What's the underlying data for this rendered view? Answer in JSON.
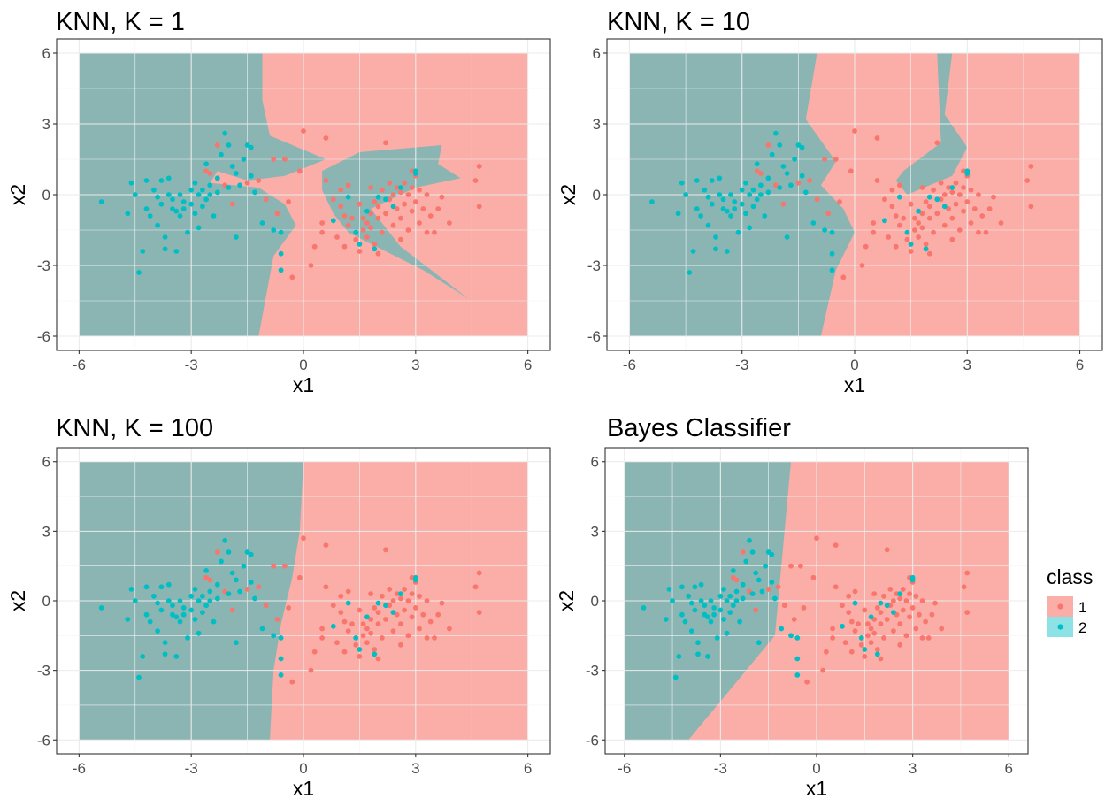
{
  "colors": {
    "class_1": "#f8766d",
    "class_2": "#00bfc4"
  },
  "legend": {
    "title": "class",
    "items": [
      {
        "label": "1",
        "color": "#f8766d"
      },
      {
        "label": "2",
        "color": "#00bfc4"
      }
    ],
    "position": "right"
  },
  "chart_data": [
    {
      "type": "scatter",
      "title": "KNN, K = 1",
      "xlabel": "x1",
      "ylabel": "x2",
      "xlim": [
        -6,
        6
      ],
      "ylim": [
        -6,
        6
      ],
      "xticks": [
        "-6",
        "-3",
        "0",
        "3",
        "6"
      ],
      "yticks": [
        "-6",
        "-3",
        "0",
        "3",
        "6"
      ],
      "grid": true,
      "decision_region_class_2": [
        [
          -6,
          -6
        ],
        [
          -6,
          6
        ],
        [
          -1.1,
          6
        ],
        [
          -1.1,
          4
        ],
        [
          -0.9,
          2.5
        ],
        [
          0.6,
          1.5
        ],
        [
          -0.5,
          0.8
        ],
        [
          -1.5,
          0.6
        ],
        [
          -2.3,
          1.0
        ],
        [
          -2.5,
          0.5
        ],
        [
          -1.2,
          0.3
        ],
        [
          -0.5,
          -0.4
        ],
        [
          -0.2,
          -1.3
        ],
        [
          -0.8,
          -2.6
        ],
        [
          -1.2,
          -6
        ]
      ],
      "decision_region_class_2_islands": [
        [
          [
            0.5,
            1.0
          ],
          [
            1.5,
            1.8
          ],
          [
            3.7,
            2.1
          ],
          [
            3.6,
            1.3
          ],
          [
            4.2,
            0.7
          ],
          [
            3.0,
            0.3
          ],
          [
            1.8,
            -0.6
          ],
          [
            2.6,
            -2.2
          ],
          [
            4.4,
            -4.4
          ],
          [
            3.2,
            -3.2
          ],
          [
            1.2,
            -1.6
          ],
          [
            0.8,
            -0.8
          ],
          [
            0.5,
            0.2
          ]
        ]
      ]
    },
    {
      "type": "scatter",
      "title": "KNN, K = 10",
      "xlabel": "x1",
      "ylabel": "x2",
      "xlim": [
        -6,
        6
      ],
      "ylim": [
        -6,
        6
      ],
      "xticks": [
        "-6",
        "-3",
        "0",
        "3",
        "6"
      ],
      "yticks": [
        "-6",
        "-3",
        "0",
        "3",
        "6"
      ],
      "grid": true,
      "decision_region_class_2": [
        [
          -6,
          -6
        ],
        [
          -6,
          6
        ],
        [
          -1.0,
          6
        ],
        [
          -1.3,
          3.2
        ],
        [
          -0.5,
          1.4
        ],
        [
          -0.9,
          0.4
        ],
        [
          -0.3,
          -0.6
        ],
        [
          0.0,
          -1.6
        ],
        [
          -0.5,
          -3.2
        ],
        [
          -0.9,
          -6
        ]
      ],
      "decision_region_class_2_islands": [
        [
          [
            1.3,
            1.0
          ],
          [
            2.3,
            2.2
          ],
          [
            2.2,
            6
          ],
          [
            2.6,
            6
          ],
          [
            2.4,
            3.4
          ],
          [
            3.0,
            2.0
          ],
          [
            2.6,
            0.8
          ],
          [
            1.4,
            0.0
          ],
          [
            1.1,
            0.6
          ]
        ]
      ]
    },
    {
      "type": "scatter",
      "title": "KNN, K = 100",
      "xlabel": "x1",
      "ylabel": "x2",
      "xlim": [
        -6,
        6
      ],
      "ylim": [
        -6,
        6
      ],
      "xticks": [
        "-6",
        "-3",
        "0",
        "3",
        "6"
      ],
      "yticks": [
        "-6",
        "-3",
        "0",
        "3",
        "6"
      ],
      "grid": true,
      "decision_region_class_2": [
        [
          -6,
          -6
        ],
        [
          -6,
          6
        ],
        [
          0.0,
          6
        ],
        [
          -0.1,
          3.0
        ],
        [
          -0.3,
          1.0
        ],
        [
          -0.6,
          -1.0
        ],
        [
          -0.8,
          -3.0
        ],
        [
          -0.9,
          -6
        ]
      ]
    },
    {
      "type": "scatter",
      "title": "Bayes Classifier",
      "xlabel": "x1",
      "ylabel": "x2",
      "xlim": [
        -6,
        6
      ],
      "ylim": [
        -6,
        6
      ],
      "xticks": [
        "-6",
        "-3",
        "0",
        "3",
        "6"
      ],
      "yticks": [
        "-6",
        "-3",
        "0",
        "3",
        "6"
      ],
      "grid": true,
      "decision_region_class_2": [
        [
          -6,
          -6
        ],
        [
          -6,
          6
        ],
        [
          -0.8,
          6
        ],
        [
          -1.3,
          -1.5
        ],
        [
          -4.0,
          -6
        ]
      ]
    }
  ],
  "points": {
    "class_1": [
      [
        -2.6,
        1.0
      ],
      [
        -2.5,
        0.9
      ],
      [
        -2.3,
        2.1
      ],
      [
        -2.1,
        0.4
      ],
      [
        -1.9,
        -0.4
      ],
      [
        -1.5,
        0.5
      ],
      [
        -1.2,
        0.6
      ],
      [
        -0.8,
        1.5
      ],
      [
        -0.5,
        1.5
      ],
      [
        -0.1,
        1.0
      ],
      [
        0.0,
        2.7
      ],
      [
        0.6,
        2.4
      ],
      [
        0.6,
        0.6
      ],
      [
        0.8,
        -0.2
      ],
      [
        0.5,
        -1.2
      ],
      [
        0.5,
        -1.6
      ],
      [
        0.3,
        -2.2
      ],
      [
        0.2,
        -3.0
      ],
      [
        -0.3,
        -3.5
      ],
      [
        1.0,
        -0.5
      ],
      [
        1.1,
        -0.9
      ],
      [
        1.2,
        -1.3
      ],
      [
        1.3,
        -1.0
      ],
      [
        1.4,
        -1.9
      ],
      [
        1.5,
        -0.4
      ],
      [
        1.6,
        -1.0
      ],
      [
        1.6,
        -1.5
      ],
      [
        1.7,
        -1.2
      ],
      [
        1.7,
        -1.8
      ],
      [
        1.8,
        -0.8
      ],
      [
        1.8,
        -1.4
      ],
      [
        1.9,
        -2.1
      ],
      [
        1.9,
        -0.3
      ],
      [
        2.0,
        -0.5
      ],
      [
        2.0,
        -1.0
      ],
      [
        2.1,
        0.2
      ],
      [
        2.1,
        -1.6
      ],
      [
        2.2,
        2.2
      ],
      [
        2.2,
        -0.8
      ],
      [
        2.3,
        0.5
      ],
      [
        2.3,
        -0.2
      ],
      [
        2.4,
        -1.3
      ],
      [
        2.4,
        0.0
      ],
      [
        2.5,
        -0.6
      ],
      [
        2.5,
        0.3
      ],
      [
        2.6,
        -1.0
      ],
      [
        2.6,
        0.1
      ],
      [
        2.7,
        -0.4
      ],
      [
        2.7,
        0.5
      ],
      [
        2.8,
        -1.5
      ],
      [
        2.8,
        0.0
      ],
      [
        2.9,
        -0.7
      ],
      [
        2.9,
        0.3
      ],
      [
        3.0,
        0.8
      ],
      [
        3.0,
        -0.3
      ],
      [
        3.1,
        -1.2
      ],
      [
        3.1,
        0.2
      ],
      [
        3.2,
        -0.6
      ],
      [
        3.3,
        0.0
      ],
      [
        3.4,
        -0.9
      ],
      [
        3.5,
        -1.6
      ],
      [
        3.6,
        -0.6
      ],
      [
        3.9,
        -1.2
      ],
      [
        4.6,
        0.6
      ],
      [
        4.7,
        1.2
      ],
      [
        4.7,
        -0.5
      ],
      [
        1.0,
        0.2
      ],
      [
        1.2,
        0.4
      ],
      [
        0.9,
        -1.8
      ],
      [
        1.5,
        -2.4
      ],
      [
        1.1,
        -2.2
      ],
      [
        2.0,
        -2.5
      ],
      [
        2.6,
        -1.9
      ],
      [
        3.3,
        -1.6
      ],
      [
        3.7,
        -0.1
      ],
      [
        -1.0,
        -0.2
      ],
      [
        -0.7,
        -0.8
      ],
      [
        -0.4,
        -0.3
      ],
      [
        1.8,
        0.3
      ],
      [
        2.9,
        1.0
      ]
    ],
    "class_2": [
      [
        -5.4,
        -0.3
      ],
      [
        -4.6,
        0.5
      ],
      [
        -4.7,
        -0.8
      ],
      [
        -4.4,
        -3.3
      ],
      [
        -4.3,
        -2.4
      ],
      [
        -4.2,
        -0.6
      ],
      [
        -4.1,
        -0.9
      ],
      [
        -4.0,
        0.2
      ],
      [
        -3.9,
        -0.1
      ],
      [
        -3.9,
        -1.3
      ],
      [
        -3.8,
        0.6
      ],
      [
        -3.8,
        -0.4
      ],
      [
        -3.7,
        -1.8
      ],
      [
        -3.7,
        -2.3
      ],
      [
        -3.6,
        0.7
      ],
      [
        -3.5,
        -0.2
      ],
      [
        -3.5,
        -0.6
      ],
      [
        -3.4,
        -2.4
      ],
      [
        -3.4,
        -0.7
      ],
      [
        -3.3,
        0.0
      ],
      [
        -3.3,
        -0.9
      ],
      [
        -3.2,
        -0.3
      ],
      [
        -3.1,
        -1.6
      ],
      [
        -3.0,
        0.2
      ],
      [
        -3.0,
        -0.4
      ],
      [
        -2.9,
        -0.8
      ],
      [
        -2.9,
        0.5
      ],
      [
        -2.8,
        0.0
      ],
      [
        -2.8,
        -1.4
      ],
      [
        -2.7,
        0.2
      ],
      [
        -2.7,
        -0.5
      ],
      [
        -2.6,
        1.3
      ],
      [
        -2.6,
        -0.2
      ],
      [
        -2.5,
        0.0
      ],
      [
        -2.4,
        -0.9
      ],
      [
        -2.3,
        0.7
      ],
      [
        -2.3,
        0.1
      ],
      [
        -2.2,
        1.7
      ],
      [
        -2.1,
        2.6
      ],
      [
        -2.0,
        2.1
      ],
      [
        -2.0,
        0.3
      ],
      [
        -1.9,
        1.2
      ],
      [
        -1.8,
        -1.8
      ],
      [
        -1.8,
        0.9
      ],
      [
        -1.7,
        0.4
      ],
      [
        -1.6,
        1.5
      ],
      [
        -1.5,
        2.1
      ],
      [
        -1.4,
        2.0
      ],
      [
        -1.4,
        0.8
      ],
      [
        -1.3,
        0.1
      ],
      [
        -0.8,
        -1.5
      ],
      [
        -0.6,
        -1.6
      ],
      [
        -0.6,
        -2.5
      ],
      [
        -0.6,
        -3.2
      ],
      [
        0.8,
        -1.1
      ],
      [
        1.2,
        -0.1
      ],
      [
        1.4,
        -1.6
      ],
      [
        1.5,
        -2.1
      ],
      [
        1.7,
        -0.7
      ],
      [
        1.9,
        -2.3
      ],
      [
        2.0,
        -0.1
      ],
      [
        2.2,
        -0.2
      ],
      [
        2.4,
        -0.5
      ],
      [
        2.6,
        0.3
      ],
      [
        3.0,
        1.0
      ],
      [
        3.0,
        0.9
      ],
      [
        -4.2,
        0.6
      ],
      [
        -3.6,
        0.0
      ],
      [
        -2.5,
        0.4
      ],
      [
        -3.2,
        -0.6
      ],
      [
        -1.1,
        -1.2
      ],
      [
        -4.5,
        0.0
      ]
    ]
  }
}
